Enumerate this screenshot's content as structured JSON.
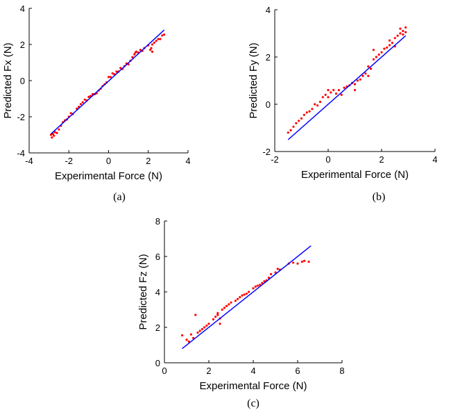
{
  "chart_data": [
    {
      "panel": "(a)",
      "type": "scatter",
      "xlabel": "Experimental Force (N)",
      "ylabel": "Predicted Fx (N)",
      "xlim": [
        -4,
        4
      ],
      "ylim": [
        -4,
        4
      ],
      "xticks": [
        "-4",
        "-2",
        "0",
        "2",
        "4"
      ],
      "yticks": [
        "-4",
        "-2",
        "0",
        "2",
        "4"
      ],
      "grid": false,
      "fit_line": {
        "x": [
          -2.9,
          2.8
        ],
        "y": [
          -2.95,
          2.8
        ]
      },
      "points": [
        [
          -2.9,
          -3.0
        ],
        [
          -2.85,
          -3.15
        ],
        [
          -2.8,
          -2.95
        ],
        [
          -2.75,
          -3.05
        ],
        [
          -2.7,
          -2.85
        ],
        [
          -2.6,
          -2.9
        ],
        [
          -2.5,
          -2.7
        ],
        [
          -2.4,
          -2.5
        ],
        [
          -2.3,
          -2.3
        ],
        [
          -2.2,
          -2.2
        ],
        [
          -2.1,
          -2.15
        ],
        [
          -2.0,
          -2.0
        ],
        [
          -1.9,
          -1.8
        ],
        [
          -1.8,
          -1.85
        ],
        [
          -1.6,
          -1.55
        ],
        [
          -1.5,
          -1.45
        ],
        [
          -1.4,
          -1.3
        ],
        [
          -1.3,
          -1.2
        ],
        [
          -1.2,
          -1.05
        ],
        [
          -1.1,
          -1.1
        ],
        [
          -1.0,
          -0.9
        ],
        [
          -0.9,
          -0.85
        ],
        [
          -0.8,
          -0.75
        ],
        [
          -0.7,
          -0.75
        ],
        [
          -0.6,
          -0.7
        ],
        [
          -0.5,
          -0.55
        ],
        [
          -0.4,
          -0.45
        ],
        [
          -0.3,
          -0.3
        ],
        [
          -0.2,
          -0.2
        ],
        [
          -0.1,
          -0.1
        ],
        [
          0.0,
          0.2
        ],
        [
          0.1,
          0.2
        ],
        [
          0.2,
          0.4
        ],
        [
          0.3,
          0.35
        ],
        [
          0.4,
          0.5
        ],
        [
          0.5,
          0.5
        ],
        [
          0.6,
          0.7
        ],
        [
          0.7,
          0.65
        ],
        [
          0.8,
          0.8
        ],
        [
          0.9,
          0.95
        ],
        [
          1.0,
          0.9
        ],
        [
          1.1,
          1.1
        ],
        [
          1.2,
          1.3
        ],
        [
          1.3,
          1.45
        ],
        [
          1.35,
          1.55
        ],
        [
          1.4,
          1.6
        ],
        [
          1.5,
          1.55
        ],
        [
          1.6,
          1.7
        ],
        [
          1.7,
          1.65
        ],
        [
          1.8,
          1.8
        ],
        [
          2.0,
          1.95
        ],
        [
          2.1,
          1.7
        ],
        [
          2.15,
          1.8
        ],
        [
          2.2,
          1.6
        ],
        [
          2.2,
          2.0
        ],
        [
          2.3,
          2.1
        ],
        [
          2.4,
          2.2
        ],
        [
          2.5,
          2.3
        ],
        [
          2.6,
          2.3
        ],
        [
          2.7,
          2.5
        ],
        [
          2.8,
          2.55
        ]
      ],
      "caption": "(a)"
    },
    {
      "panel": "(b)",
      "type": "scatter",
      "xlabel": "Experimental Force (N)",
      "ylabel": "Predicted Fy (N)",
      "xlim": [
        -2,
        4
      ],
      "ylim": [
        -2,
        4
      ],
      "xticks": [
        "-2",
        "0",
        "2",
        "4"
      ],
      "yticks": [
        "-2",
        "0",
        "2",
        "4"
      ],
      "grid": false,
      "fit_line": {
        "x": [
          -1.5,
          2.9
        ],
        "y": [
          -1.5,
          2.9
        ]
      },
      "points": [
        [
          -1.5,
          -1.2
        ],
        [
          -1.4,
          -1.1
        ],
        [
          -1.3,
          -0.95
        ],
        [
          -1.2,
          -0.8
        ],
        [
          -1.1,
          -0.7
        ],
        [
          -1.0,
          -0.6
        ],
        [
          -0.9,
          -0.45
        ],
        [
          -0.8,
          -0.35
        ],
        [
          -0.7,
          -0.3
        ],
        [
          -0.6,
          -0.2
        ],
        [
          -0.5,
          0.0
        ],
        [
          -0.4,
          -0.05
        ],
        [
          -0.3,
          0.1
        ],
        [
          -0.2,
          0.3
        ],
        [
          -0.1,
          0.4
        ],
        [
          0.0,
          0.6
        ],
        [
          0.0,
          0.3
        ],
        [
          0.1,
          0.5
        ],
        [
          0.2,
          0.6
        ],
        [
          0.3,
          0.45
        ],
        [
          0.4,
          0.6
        ],
        [
          0.5,
          0.4
        ],
        [
          0.6,
          0.7
        ],
        [
          0.7,
          0.75
        ],
        [
          0.8,
          0.8
        ],
        [
          0.9,
          0.9
        ],
        [
          1.0,
          0.85
        ],
        [
          1.0,
          0.6
        ],
        [
          1.1,
          1.0
        ],
        [
          1.2,
          1.05
        ],
        [
          1.3,
          1.2
        ],
        [
          1.4,
          1.3
        ],
        [
          1.5,
          1.6
        ],
        [
          1.5,
          1.2
        ],
        [
          1.6,
          1.5
        ],
        [
          1.7,
          1.9
        ],
        [
          1.7,
          2.3
        ],
        [
          1.8,
          2.0
        ],
        [
          1.9,
          2.1
        ],
        [
          2.0,
          2.2
        ],
        [
          2.1,
          2.35
        ],
        [
          2.2,
          2.4
        ],
        [
          2.3,
          2.5
        ],
        [
          2.3,
          2.7
        ],
        [
          2.4,
          2.6
        ],
        [
          2.5,
          2.8
        ],
        [
          2.5,
          2.45
        ],
        [
          2.6,
          2.9
        ],
        [
          2.7,
          3.0
        ],
        [
          2.7,
          3.2
        ],
        [
          2.8,
          3.1
        ],
        [
          2.8,
          2.95
        ],
        [
          2.9,
          3.25
        ],
        [
          2.9,
          3.05
        ]
      ],
      "caption": "(b)"
    },
    {
      "panel": "(c)",
      "type": "scatter",
      "xlabel": "Experimental Force (N)",
      "ylabel": "Predicted Fz (N)",
      "xlim": [
        0,
        8
      ],
      "ylim": [
        0,
        8
      ],
      "xticks": [
        "0",
        "2",
        "4",
        "6",
        "8"
      ],
      "yticks": [
        "0",
        "2",
        "4",
        "6",
        "8"
      ],
      "grid": false,
      "fit_line": {
        "x": [
          0.8,
          6.6
        ],
        "y": [
          0.8,
          6.6
        ]
      },
      "points": [
        [
          0.8,
          1.55
        ],
        [
          1.0,
          1.3
        ],
        [
          1.1,
          1.2
        ],
        [
          1.2,
          1.6
        ],
        [
          1.3,
          1.4
        ],
        [
          1.4,
          2.7
        ],
        [
          1.5,
          1.7
        ],
        [
          1.6,
          1.8
        ],
        [
          1.7,
          1.9
        ],
        [
          1.8,
          2.0
        ],
        [
          1.9,
          2.1
        ],
        [
          2.0,
          2.2
        ],
        [
          2.2,
          2.45
        ],
        [
          2.3,
          2.6
        ],
        [
          2.4,
          2.8
        ],
        [
          2.4,
          2.7
        ],
        [
          2.5,
          2.2
        ],
        [
          2.5,
          2.5
        ],
        [
          2.6,
          3.0
        ],
        [
          2.7,
          3.1
        ],
        [
          2.8,
          3.2
        ],
        [
          2.9,
          3.3
        ],
        [
          3.0,
          3.4
        ],
        [
          3.2,
          3.5
        ],
        [
          3.3,
          3.6
        ],
        [
          3.4,
          3.7
        ],
        [
          3.5,
          3.8
        ],
        [
          3.6,
          3.85
        ],
        [
          3.7,
          3.9
        ],
        [
          3.8,
          4.0
        ],
        [
          4.0,
          4.2
        ],
        [
          4.1,
          4.3
        ],
        [
          4.2,
          4.35
        ],
        [
          4.3,
          4.4
        ],
        [
          4.4,
          4.5
        ],
        [
          4.5,
          4.6
        ],
        [
          4.6,
          4.65
        ],
        [
          4.7,
          4.8
        ],
        [
          4.8,
          5.0
        ],
        [
          5.0,
          5.1
        ],
        [
          5.1,
          5.3
        ],
        [
          5.2,
          5.25
        ],
        [
          5.6,
          5.6
        ],
        [
          5.8,
          5.65
        ],
        [
          6.0,
          5.6
        ],
        [
          6.2,
          5.7
        ],
        [
          6.3,
          5.75
        ],
        [
          6.5,
          5.7
        ]
      ],
      "caption": "(c)"
    }
  ]
}
